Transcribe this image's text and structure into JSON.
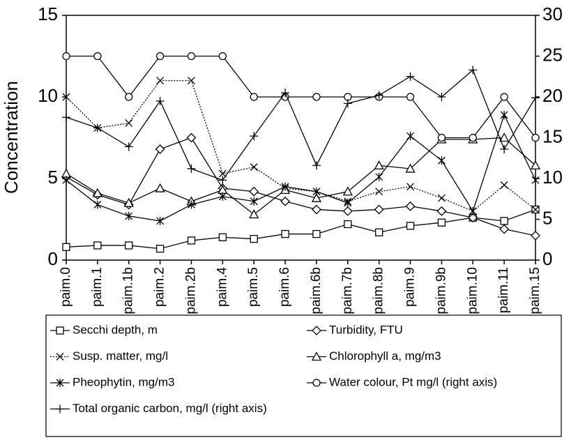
{
  "chart_data": {
    "type": "line",
    "y_label": "Concentration",
    "categories": [
      "paim.0",
      "paim.1",
      "paim.1b",
      "paim.2",
      "paim.2b",
      "paim.4",
      "paim.5",
      "paim.6",
      "paim.6b",
      "paim.7b",
      "paim.8b",
      "paim.9",
      "paim.9b",
      "paim.10",
      "paim.11",
      "paim.15"
    ],
    "ylim": [
      0,
      15
    ],
    "yticks": [
      0,
      5,
      10,
      15
    ],
    "y2lim": [
      0,
      30
    ],
    "y2ticks": [
      0,
      5,
      10,
      15,
      20,
      25,
      30
    ],
    "series": [
      {
        "name": "Secchi depth, m",
        "color": "#000000",
        "marker": "square",
        "line_style": "solid",
        "values": [
          0.8,
          0.9,
          0.9,
          0.7,
          1.2,
          1.4,
          1.3,
          1.6,
          1.6,
          2.2,
          1.7,
          2.1,
          2.3,
          2.6,
          2.4,
          3.1
        ]
      },
      {
        "name": "Turbidity, FTU",
        "color": "#000000",
        "marker": "diamond",
        "line_style": "solid",
        "values": [
          5.1,
          4.0,
          3.4,
          6.8,
          7.5,
          4.4,
          4.2,
          3.6,
          3.1,
          3.0,
          3.1,
          3.3,
          3.0,
          2.6,
          1.9,
          1.5
        ]
      },
      {
        "name": "Susp. matter, mg/l",
        "color": "#000000",
        "marker": "x",
        "line_style": "dotted",
        "values": [
          10.0,
          8.1,
          8.4,
          11.0,
          11.0,
          5.3,
          5.7,
          4.4,
          4.2,
          3.6,
          4.2,
          4.5,
          3.8,
          3.0,
          4.6,
          3.1
        ]
      },
      {
        "name": "Chlorophyll a, mg/m3",
        "color": "#000000",
        "marker": "triangle",
        "line_style": "solid",
        "values": [
          5.3,
          4.1,
          3.5,
          4.4,
          3.6,
          4.3,
          2.8,
          4.3,
          3.8,
          4.2,
          5.8,
          5.6,
          7.4,
          7.4,
          7.5,
          5.8
        ]
      },
      {
        "name": "Pheophytin, mg/m3",
        "color": "#000000",
        "marker": "asterisk",
        "line_style": "solid",
        "values": [
          4.9,
          3.4,
          2.7,
          2.4,
          3.4,
          3.9,
          3.6,
          4.5,
          4.2,
          3.5,
          5.1,
          7.6,
          6.1,
          3.0,
          8.9,
          4.9
        ]
      },
      {
        "name": "Water colour, Pt mg/l (right axis)",
        "color": "#000000",
        "marker": "circle",
        "line_style": "solid",
        "axis": "y2",
        "values": [
          25,
          25,
          20,
          25,
          25,
          25,
          20,
          20,
          20,
          20,
          20,
          20,
          15,
          15,
          20,
          15
        ]
      },
      {
        "name": "Total organic carbon, mg/l (right axis)",
        "color": "#000000",
        "marker": "plus",
        "line_style": "solid",
        "axis": "y2",
        "values": [
          17.5,
          16.2,
          13.9,
          19.5,
          11.2,
          9.8,
          15.2,
          20.5,
          11.6,
          19.2,
          20.2,
          22.5,
          20.0,
          23.3,
          13.6,
          19.9
        ]
      }
    ]
  }
}
